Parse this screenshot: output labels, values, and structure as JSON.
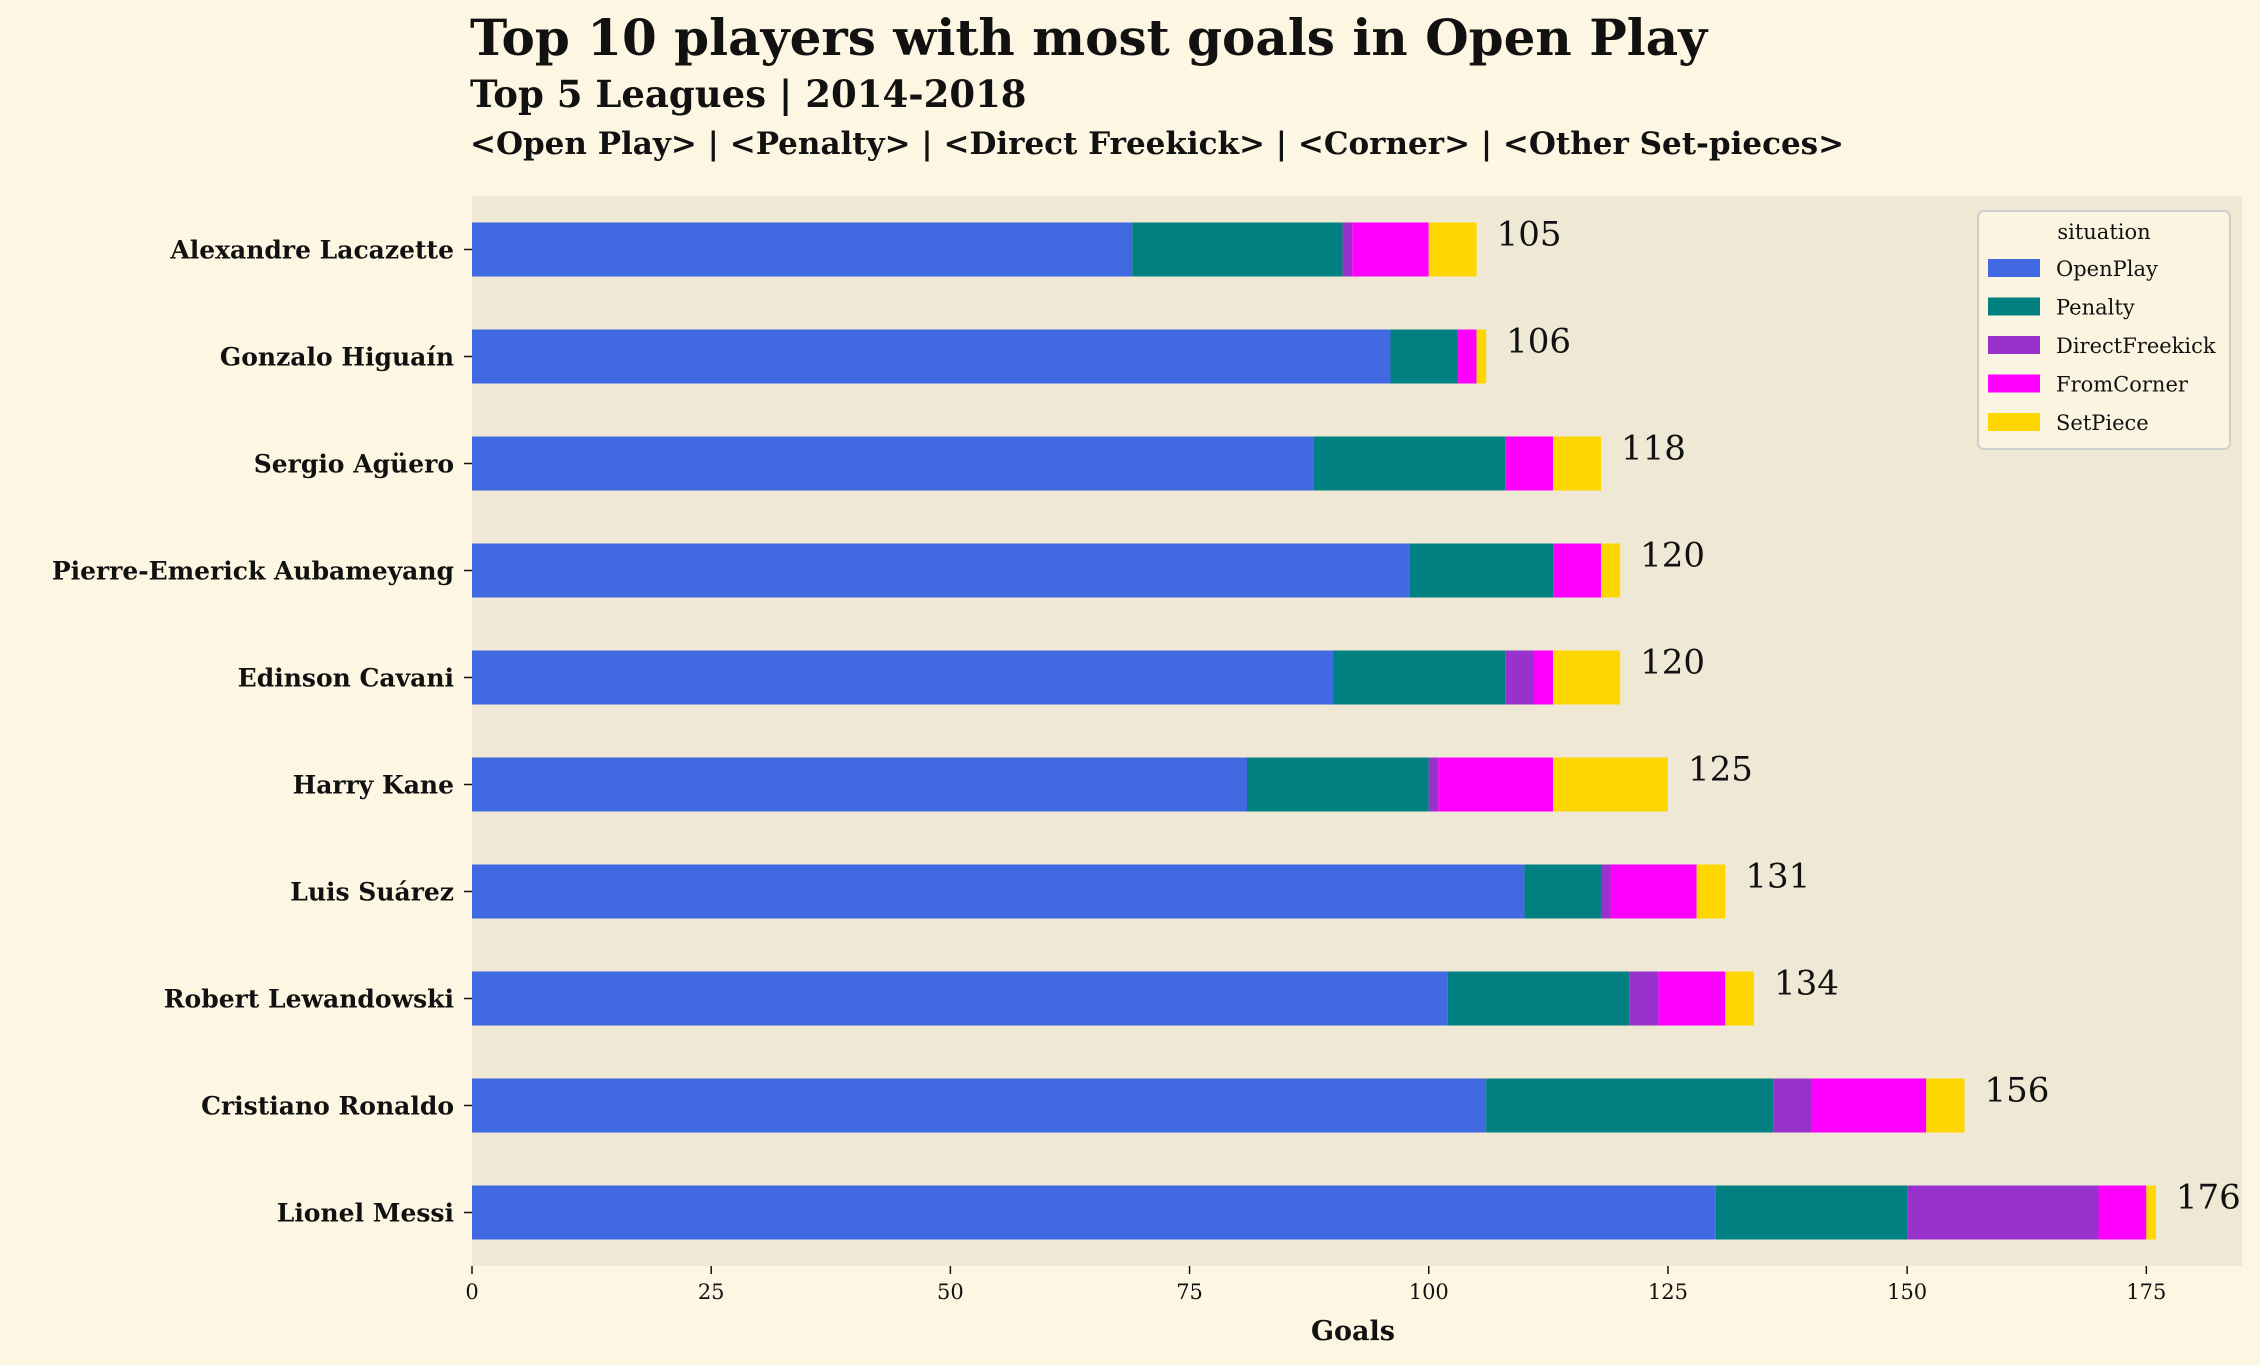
{
  "header": {
    "title": "Top 10 players with most goals in Open Play",
    "subtitle": "Top 5 Leagues | 2014-2018",
    "caption": "<Open Play> | <Penalty> | <Direct Freekick> | <Corner> | <Other Set-pieces>"
  },
  "chart_data": {
    "type": "bar",
    "orientation": "horizontal",
    "stacked": true,
    "categories": [
      "Alexandre Lacazette",
      "Gonzalo Higuaín",
      "Sergio Agüero",
      "Pierre-Emerick Aubameyang",
      "Edinson Cavani",
      "Harry Kane",
      "Luis Suárez",
      "Robert Lewandowski",
      "Cristiano Ronaldo",
      "Lionel Messi"
    ],
    "series": [
      {
        "name": "OpenPlay",
        "color": "#4169e1",
        "values": [
          69,
          96,
          88,
          98,
          90,
          81,
          110,
          102,
          106,
          130
        ]
      },
      {
        "name": "Penalty",
        "color": "#008080",
        "values": [
          22,
          7,
          20,
          15,
          18,
          19,
          8,
          19,
          30,
          20
        ]
      },
      {
        "name": "DirectFreekick",
        "color": "#9932cc",
        "values": [
          1,
          0,
          0,
          0,
          3,
          1,
          1,
          3,
          4,
          20
        ]
      },
      {
        "name": "FromCorner",
        "color": "#ff00ff",
        "values": [
          8,
          2,
          5,
          5,
          2,
          12,
          9,
          7,
          12,
          5
        ]
      },
      {
        "name": "SetPiece",
        "color": "#ffd700",
        "values": [
          5,
          1,
          5,
          2,
          7,
          12,
          3,
          3,
          4,
          1
        ]
      }
    ],
    "totals": [
      105,
      106,
      118,
      120,
      120,
      125,
      131,
      134,
      156,
      176
    ],
    "xlabel": "Goals",
    "xlim": [
      0,
      185
    ],
    "xticks": [
      0,
      25,
      50,
      75,
      100,
      125,
      150,
      175
    ],
    "legend": {
      "title": "situation",
      "placement": "top-right"
    },
    "grid": false
  }
}
